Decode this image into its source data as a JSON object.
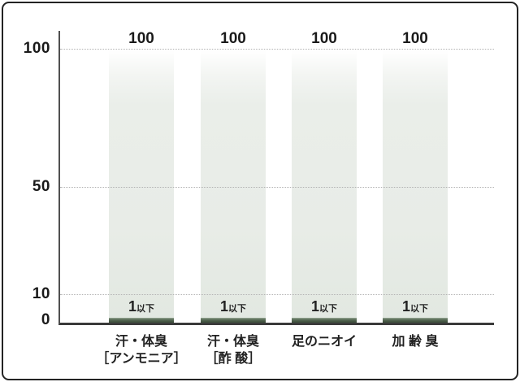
{
  "y_axis": {
    "tick_100": "100",
    "tick_50": "50",
    "tick_10": "10",
    "tick_0": "0"
  },
  "bars": [
    {
      "value_top": "100",
      "min_number": "1",
      "min_suffix": "以下",
      "label_line1": "汗・体臭",
      "label_line2": "［アンモニア］"
    },
    {
      "value_top": "100",
      "min_number": "1",
      "min_suffix": "以下",
      "label_line1": "汗・体臭",
      "label_line2": "［酢 酸］"
    },
    {
      "value_top": "100",
      "min_number": "1",
      "min_suffix": "以下",
      "label_line1": "足のニオイ",
      "label_line2": ""
    },
    {
      "value_top": "100",
      "min_number": "1",
      "min_suffix": "以下",
      "label_line1": "加 齢 臭",
      "label_line2": ""
    }
  ],
  "colors": {
    "frame_border": "#242424",
    "background": "#ffffff",
    "light_bar_bottom": "#e2e8e1",
    "light_bar_mid": "#e8ece7",
    "dark_bar": "#465844",
    "gridline": "#b3b3b3",
    "y_axis_line": "#4f4f4f",
    "x_axis_line": "#3a3a3a",
    "text": "#1f1f1f"
  },
  "chart_data": {
    "type": "bar",
    "categories": [
      "汗・体臭［アンモニア］",
      "汗・体臭［酢酸］",
      "足のニオイ",
      "加齢臭"
    ],
    "series": [
      {
        "name": "100",
        "values": [
          100,
          100,
          100,
          100
        ],
        "data_labels": [
          "100",
          "100",
          "100",
          "100"
        ],
        "style": "tall light gradient bar"
      },
      {
        "name": "1以下",
        "values": [
          1,
          1,
          1,
          1
        ],
        "data_labels": [
          "1以下",
          "1以下",
          "1以下",
          "1以下"
        ],
        "style": "thin dark green bar at baseline"
      }
    ],
    "title": "",
    "xlabel": "",
    "ylabel": "",
    "ylim": [
      0,
      100
    ],
    "yticks": [
      0,
      10,
      50,
      100
    ],
    "grid": "horizontal dotted lines at y = 10, 50, 100",
    "legend": "none"
  }
}
